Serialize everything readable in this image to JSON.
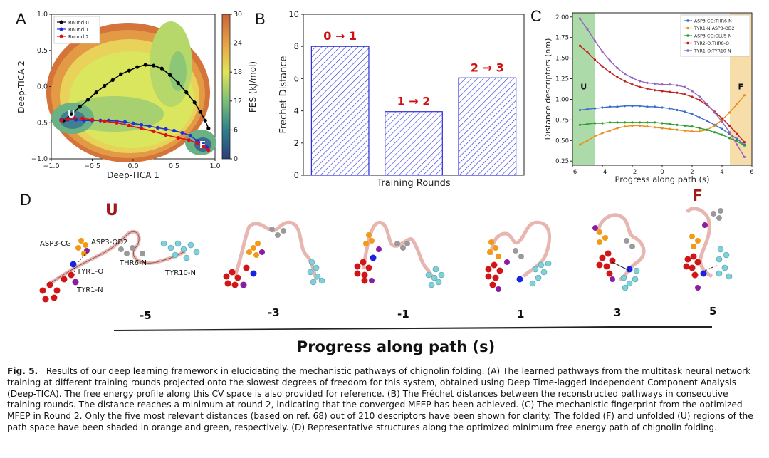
{
  "panels": {
    "a": "A",
    "b": "B",
    "c": "C",
    "d": "D"
  },
  "panel_a": {
    "xlabel": "Deep-TICA 1",
    "ylabel": "Deep-TICA 2",
    "xticks": [
      "−1.0",
      "−0.5",
      "0.0",
      "0.5",
      "1.0"
    ],
    "yticks": [
      "1.0",
      "0.5",
      "0.0",
      "−0.5",
      "−1.0"
    ],
    "colorbar_label": "FES (kJ/mol)",
    "colorbar_ticks": [
      "30",
      "24",
      "18",
      "12",
      "6",
      "0"
    ],
    "legend": [
      "Round 0",
      "Round 1",
      "Round 2"
    ],
    "series_colors": [
      "#000000",
      "#1f2fe0",
      "#e01010"
    ],
    "state_u": "U",
    "state_f": "F"
  },
  "chart_data": [
    {
      "type": "line",
      "title": "",
      "xlabel": "Deep-TICA 1",
      "ylabel": "Deep-TICA 2",
      "xlim": [
        -1.0,
        1.0
      ],
      "ylim": [
        -1.0,
        1.0
      ],
      "series": [
        {
          "name": "Round 0",
          "x": [
            -0.85,
            -0.75,
            -0.65,
            -0.55,
            -0.45,
            -0.35,
            -0.25,
            -0.15,
            -0.05,
            0.05,
            0.15,
            0.25,
            0.35,
            0.45,
            0.55,
            0.65,
            0.75,
            0.82,
            0.88,
            0.92
          ],
          "y": [
            -0.47,
            -0.38,
            -0.28,
            -0.18,
            -0.08,
            0.01,
            0.09,
            0.17,
            0.22,
            0.27,
            0.3,
            0.29,
            0.25,
            0.16,
            0.05,
            -0.08,
            -0.22,
            -0.35,
            -0.47,
            -0.58
          ]
        },
        {
          "name": "Round 1",
          "x": [
            -0.88,
            -0.8,
            -0.7,
            -0.6,
            -0.5,
            -0.4,
            -0.3,
            -0.2,
            -0.1,
            0.0,
            0.1,
            0.2,
            0.3,
            0.4,
            0.5,
            0.6,
            0.7,
            0.78,
            0.85,
            0.9
          ],
          "y": [
            -0.46,
            -0.46,
            -0.46,
            -0.47,
            -0.47,
            -0.47,
            -0.47,
            -0.48,
            -0.49,
            -0.51,
            -0.53,
            -0.55,
            -0.57,
            -0.59,
            -0.61,
            -0.64,
            -0.68,
            -0.75,
            -0.8,
            -0.84
          ]
        },
        {
          "name": "Round 2",
          "x": [
            -0.88,
            -0.8,
            -0.72,
            -0.62,
            -0.5,
            -0.35,
            -0.2,
            -0.05,
            0.1,
            0.25,
            0.4,
            0.55,
            0.68,
            0.78,
            0.86,
            0.92
          ],
          "y": [
            -0.47,
            -0.45,
            -0.43,
            -0.44,
            -0.46,
            -0.48,
            -0.5,
            -0.54,
            -0.58,
            -0.62,
            -0.67,
            -0.71,
            -0.74,
            -0.78,
            -0.83,
            -0.88
          ]
        }
      ]
    },
    {
      "type": "bar",
      "title": "",
      "xlabel": "Training Rounds",
      "ylabel": "Frechet Distance",
      "categories": [
        "0 → 1",
        "1 → 2",
        "2 → 3"
      ],
      "values": [
        8.0,
        3.95,
        6.05
      ],
      "ylim": [
        0,
        10
      ],
      "yticks": [
        "0",
        "2",
        "4",
        "6",
        "8",
        "10"
      ],
      "bar_color": "#2b2bd8",
      "label_color": "#d01010"
    },
    {
      "type": "line",
      "title": "",
      "xlabel": "Progress along path (s)",
      "ylabel": "Distance descriptors (nm)",
      "xlim": [
        -6,
        6
      ],
      "ylim": [
        0.2,
        2.05
      ],
      "xticks": [
        "−6",
        "−4",
        "−2",
        "0",
        "2",
        "4",
        "6"
      ],
      "yticks": [
        "0.25",
        "0.50",
        "0.75",
        "1.00",
        "1.25",
        "1.50",
        "1.75",
        "2.00"
      ],
      "shaded_regions": [
        {
          "label": "U",
          "from": -6,
          "to": -4.5,
          "color": "#9fd49a"
        },
        {
          "label": "F",
          "from": 4.5,
          "to": 6,
          "color": "#f6d79a"
        }
      ],
      "x": [
        -5.5,
        -5.0,
        -4.5,
        -4.0,
        -3.5,
        -3.0,
        -2.5,
        -2.0,
        -1.5,
        -1.0,
        -0.5,
        0.0,
        0.5,
        1.0,
        1.5,
        2.0,
        2.5,
        3.0,
        3.5,
        4.0,
        4.5,
        5.0,
        5.5
      ],
      "series": [
        {
          "name": "ASP3-CG:THR6-N",
          "color": "#3a6fd0",
          "values": [
            0.87,
            0.88,
            0.89,
            0.9,
            0.91,
            0.91,
            0.92,
            0.92,
            0.92,
            0.91,
            0.91,
            0.9,
            0.89,
            0.87,
            0.85,
            0.82,
            0.78,
            0.74,
            0.69,
            0.64,
            0.58,
            0.52,
            0.45
          ]
        },
        {
          "name": "TYR1-N:ASP3-OD2",
          "color": "#e8901a",
          "values": [
            0.45,
            0.5,
            0.55,
            0.59,
            0.62,
            0.65,
            0.67,
            0.68,
            0.68,
            0.67,
            0.66,
            0.65,
            0.64,
            0.63,
            0.62,
            0.61,
            0.61,
            0.63,
            0.68,
            0.75,
            0.84,
            0.94,
            1.05
          ]
        },
        {
          "name": "ASP3-CG:GLU5-N",
          "color": "#2ea02e",
          "values": [
            0.69,
            0.7,
            0.71,
            0.71,
            0.72,
            0.72,
            0.72,
            0.72,
            0.72,
            0.72,
            0.72,
            0.71,
            0.7,
            0.69,
            0.68,
            0.67,
            0.65,
            0.63,
            0.6,
            0.57,
            0.53,
            0.49,
            0.44
          ]
        },
        {
          "name": "TYR2-O:THR8-O",
          "color": "#c02020",
          "values": [
            1.65,
            1.57,
            1.48,
            1.4,
            1.33,
            1.27,
            1.22,
            1.18,
            1.15,
            1.13,
            1.11,
            1.1,
            1.09,
            1.08,
            1.06,
            1.03,
            0.99,
            0.93,
            0.85,
            0.77,
            0.68,
            0.58,
            0.48
          ]
        },
        {
          "name": "TYR1-O:TYR10-N",
          "color": "#9467bd",
          "values": [
            1.98,
            1.85,
            1.71,
            1.58,
            1.47,
            1.38,
            1.31,
            1.26,
            1.22,
            1.2,
            1.19,
            1.18,
            1.18,
            1.17,
            1.15,
            1.1,
            1.03,
            0.94,
            0.84,
            0.73,
            0.6,
            0.45,
            0.3
          ]
        }
      ]
    }
  ],
  "panel_d": {
    "state_u": "U",
    "state_f": "F",
    "labels": [
      "ASP3-CG",
      "ASP3-OD2",
      "TYR1-O",
      "THR6-N",
      "TYR10-N",
      "TYR1-N"
    ],
    "progress_values": [
      "-5",
      "-3",
      "-1",
      "1",
      "3",
      "5"
    ],
    "axis_label": "Progress along path (s)"
  },
  "caption": {
    "fig": "Fig. 5.",
    "text": "Results of our deep learning framework in elucidating the mechanistic pathways of chignolin folding. (A) The learned pathways from the multitask neural network training at different training rounds projected onto the slowest degrees of freedom for this system, obtained using Deep Time-lagged Independent Component Analysis (Deep-TICA). The free energy profile along this CV space is also provided for reference. (B) The Fréchet distances between the reconstructed pathways in consecutive training rounds. The distance reaches a minimum at round 2, indicating that the converged MFEP has been achieved. (C) The mechanistic fingerprint from the optimized MFEP in Round 2. Only the five most relevant distances (based on ref. 68) out of 210 descriptors have been shown for clarity. The folded (F) and unfolded (U) regions of the path space have been shaded in orange and green, respectively. (D) Representative structures along the optimized minimum free energy path of chignolin folding."
  }
}
